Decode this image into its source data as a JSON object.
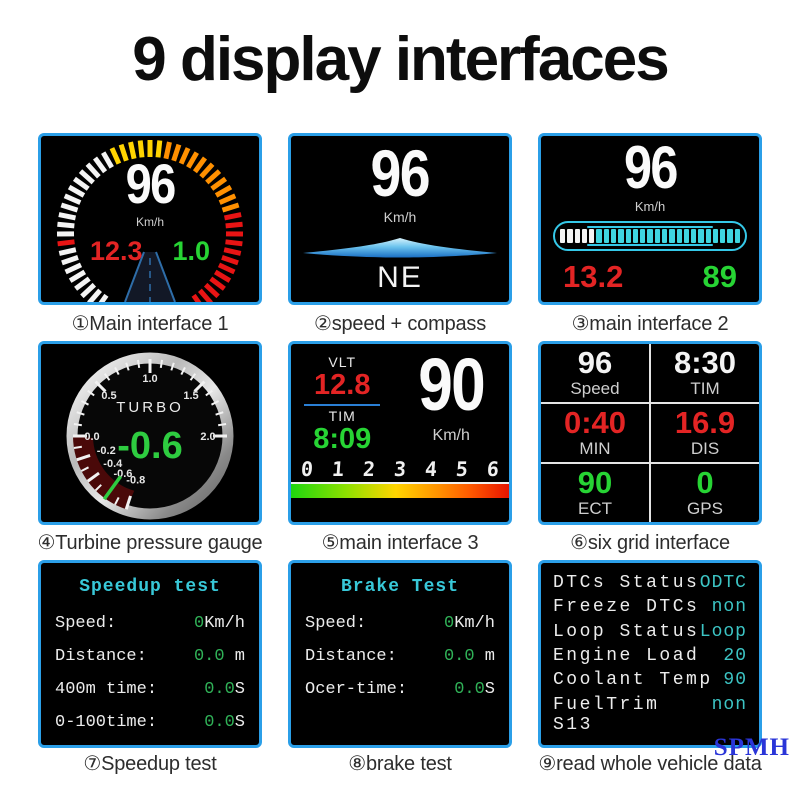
{
  "page": {
    "title": "9 display interfaces",
    "watermark": "SPMH"
  },
  "colors": {
    "panel_border": "#2b9fe8",
    "caption_text": "#2d2d2d",
    "white": "#f4f4f4",
    "gray_label": "#cfcfcf",
    "red": "#e32424",
    "green": "#27d434",
    "value_green": "#30b258",
    "cyan_title": "#38c8d8",
    "cyan_value": "#3cc4c4",
    "segment_cyan": "#3fd6e0",
    "capsule_border": "#35c8e8",
    "yellow": "#ffd400",
    "orange": "#ff9000",
    "tick_red": "#e81414",
    "needle_green": "#2ecc40",
    "divider_blue": "#2a7fd4",
    "watermark_blue": "#2a35d8"
  },
  "panels": {
    "p1": {
      "caption": "①Main interface 1",
      "speed": "96",
      "unit": "Km/h",
      "left_value": "12.3",
      "right_value": "1.0"
    },
    "p2": {
      "caption": "②speed + compass",
      "speed": "96",
      "unit": "Km/h",
      "compass": "NE"
    },
    "p3": {
      "caption": "③main interface 2",
      "speed": "96",
      "unit": "Km/h",
      "left_value": "13.2",
      "right_value": "89",
      "bar": {
        "total": 25,
        "white": 5
      }
    },
    "p4": {
      "caption": "④Turbine pressure gauge",
      "gauge_label": "TURBO",
      "value": "-0.6",
      "needle_value": -0.6,
      "scale_labels": [
        {
          "text": "0.0",
          "value": 0
        },
        {
          "text": "0.5",
          "value": 0.5
        },
        {
          "text": "1.0",
          "value": 1
        },
        {
          "text": "1.5",
          "value": 1.5
        },
        {
          "text": "2.0",
          "value": 2
        },
        {
          "text": "-0.2",
          "value": -0.2
        },
        {
          "text": "-0.4",
          "value": -0.4
        },
        {
          "text": "-0.6",
          "value": -0.6
        },
        {
          "text": "-0.8",
          "value": -0.8
        }
      ]
    },
    "p5": {
      "caption": "⑤main interface 3",
      "vlt_label": "VLT",
      "vlt_value": "12.8",
      "tim_label": "TIM",
      "tim_value": "8:09",
      "speed": "90",
      "unit": "Km/h",
      "scale": [
        "0",
        "1",
        "2",
        "3",
        "4",
        "5",
        "6"
      ]
    },
    "p6": {
      "caption": "⑥six grid interface",
      "cells": [
        {
          "value": "96",
          "label": "Speed",
          "color": "white"
        },
        {
          "value": "8:30",
          "label": "TIM",
          "color": "white"
        },
        {
          "value": "0:40",
          "label": "MIN",
          "color": "red"
        },
        {
          "value": "16.9",
          "label": "DIS",
          "color": "red"
        },
        {
          "value": "90",
          "label": "ECT",
          "color": "green"
        },
        {
          "value": "0",
          "label": "GPS",
          "color": "green"
        }
      ]
    },
    "p7": {
      "caption": "⑦Speedup test",
      "title": "Speedup test",
      "rows": [
        {
          "label": "Speed:",
          "value": "0",
          "unit": "Km/h"
        },
        {
          "label": "Distance:",
          "value": "0.0",
          "unit": " m"
        },
        {
          "label": "400m time:",
          "value": "0.0",
          "unit": "S"
        },
        {
          "label": "0-100time:",
          "value": "0.0",
          "unit": "S"
        }
      ]
    },
    "p8": {
      "caption": "⑧brake test",
      "title": "Brake Test",
      "rows": [
        {
          "label": "Speed:",
          "value": "0",
          "unit": "Km/h"
        },
        {
          "label": "Distance:",
          "value": "0.0",
          "unit": " m"
        },
        {
          "label": "Ocer-time:",
          "value": "0.0",
          "unit": "S"
        }
      ]
    },
    "p9": {
      "caption": "⑨read whole vehicle data",
      "rows": [
        {
          "label": "DTCs Status",
          "value": "ODTC"
        },
        {
          "label": "Freeze DTCs",
          "value": "non"
        },
        {
          "label": "Loop Status",
          "value": "Loop"
        },
        {
          "label": "Engine Load",
          "value": "20"
        },
        {
          "label": "Coolant Temp",
          "value": "90"
        },
        {
          "label": "FuelTrim S13",
          "value": "non"
        }
      ]
    }
  }
}
